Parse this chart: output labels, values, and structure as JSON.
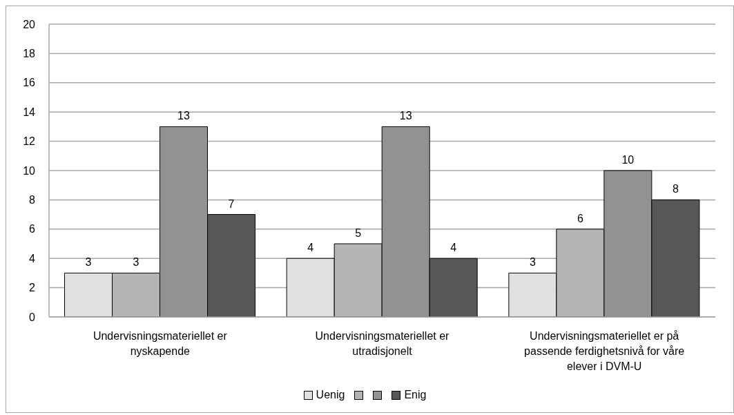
{
  "chart_data": {
    "type": "bar",
    "categories": [
      "Undervisningsmateriellet er nyskapende",
      "Undervisningsmateriellet er utradisjonelt",
      "Undervisningsmateriellet er på passende ferdighetsnivå for våre elever i DVM-U"
    ],
    "series": [
      {
        "name": "Uenig",
        "color": "#e0e0e0",
        "values": [
          3,
          4,
          3
        ]
      },
      {
        "color": "#b4b4b4",
        "values": [
          3,
          5,
          6
        ]
      },
      {
        "color": "#929292",
        "values": [
          13,
          13,
          10
        ]
      },
      {
        "name": "Enig",
        "color": "#575757",
        "values": [
          7,
          4,
          8
        ]
      }
    ],
    "ylim": [
      0,
      20
    ],
    "yticks": [
      0,
      2,
      4,
      6,
      8,
      10,
      12,
      14,
      16,
      18,
      20
    ],
    "grid": "y",
    "legend": "bottom",
    "data_labels": true
  }
}
